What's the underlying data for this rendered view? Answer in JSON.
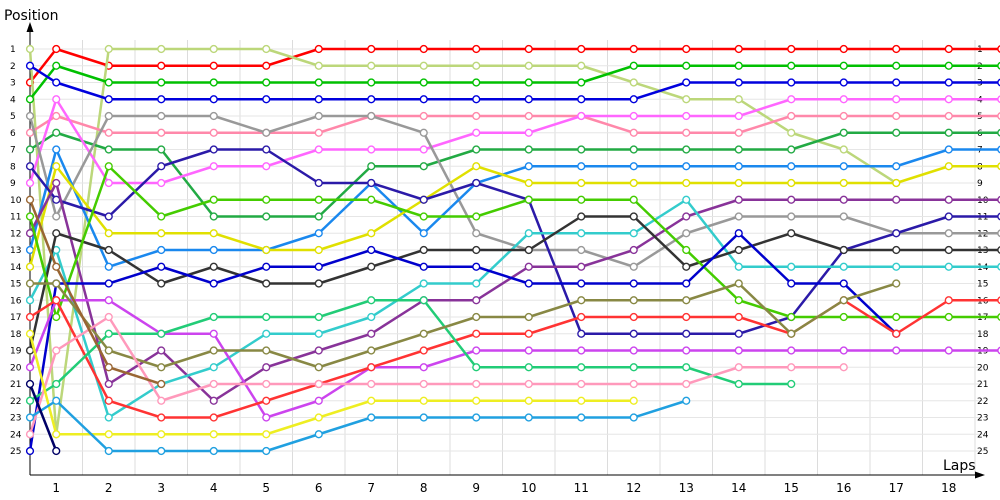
{
  "chart_data": {
    "type": "line",
    "ylabel": "Position",
    "xlabel": "Laps",
    "x_ticks": [
      "1",
      "2",
      "3",
      "4",
      "5",
      "6",
      "7",
      "8",
      "9",
      "10",
      "11",
      "12",
      "13",
      "14",
      "15",
      "16",
      "17",
      "18"
    ],
    "y_ticks": [
      "1",
      "2",
      "3",
      "4",
      "5",
      "6",
      "7",
      "8",
      "9",
      "10",
      "11",
      "12",
      "13",
      "14",
      "15",
      "16",
      "17",
      "18",
      "19",
      "20",
      "21",
      "22",
      "23",
      "24",
      "25"
    ],
    "x_points": [
      0,
      0.5,
      1.5,
      2.5,
      3.5,
      4.5,
      5.5,
      6.5,
      7.5,
      8.5,
      9.5,
      10.5,
      11.5,
      12.5,
      13.5,
      14.5,
      15.5,
      16.5,
      17.5,
      18.5
    ],
    "ylim": [
      1,
      25
    ],
    "grid": true,
    "series": [
      {
        "color": "#ff0000",
        "values": [
          3,
          1,
          2,
          2,
          2,
          2,
          1,
          1,
          1,
          1,
          1,
          1,
          1,
          1,
          1,
          1,
          1,
          1,
          1,
          1
        ]
      },
      {
        "color": "#bcd77a",
        "values": [
          1,
          24,
          1,
          1,
          1,
          1,
          2,
          2,
          2,
          2,
          2,
          2,
          3,
          4,
          4,
          6,
          7,
          9,
          null,
          null
        ]
      },
      {
        "color": "#00c000",
        "values": [
          4,
          2,
          3,
          3,
          3,
          3,
          3,
          3,
          3,
          3,
          3,
          3,
          2,
          2,
          2,
          2,
          2,
          2,
          2,
          2
        ]
      },
      {
        "color": "#0000dd",
        "values": [
          2,
          3,
          4,
          4,
          4,
          4,
          4,
          4,
          4,
          4,
          4,
          4,
          4,
          3,
          3,
          3,
          3,
          3,
          3,
          3
        ]
      },
      {
        "color": "#ff88aa",
        "values": [
          6,
          5,
          6,
          6,
          6,
          6,
          6,
          5,
          5,
          5,
          5,
          5,
          6,
          6,
          6,
          5,
          5,
          5,
          5,
          5
        ]
      },
      {
        "color": "#22aa44",
        "values": [
          7,
          6,
          7,
          7,
          11,
          11,
          11,
          8,
          8,
          7,
          7,
          7,
          7,
          7,
          7,
          7,
          6,
          6,
          6,
          6
        ]
      },
      {
        "color": "#ff66ff",
        "values": [
          9,
          4,
          9,
          9,
          8,
          8,
          7,
          7,
          7,
          6,
          6,
          5,
          5,
          5,
          5,
          4,
          4,
          4,
          4,
          4
        ]
      },
      {
        "color": "#999999",
        "values": [
          5,
          11,
          5,
          5,
          5,
          6,
          5,
          5,
          6,
          12,
          13,
          13,
          14,
          12,
          11,
          11,
          11,
          12,
          12,
          12
        ]
      },
      {
        "color": "#1a88ee",
        "values": [
          13,
          7,
          14,
          13,
          13,
          13,
          12,
          9,
          12,
          9,
          8,
          8,
          8,
          8,
          8,
          8,
          8,
          8,
          7,
          7
        ]
      },
      {
        "color": "#e0e000",
        "values": [
          14,
          8,
          12,
          12,
          12,
          13,
          13,
          12,
          10,
          8,
          9,
          9,
          9,
          9,
          9,
          9,
          9,
          9,
          8,
          8
        ]
      },
      {
        "color": "#2b1aa8",
        "values": [
          8,
          10,
          11,
          8,
          7,
          7,
          9,
          9,
          10,
          9,
          10,
          18,
          18,
          18,
          18,
          17,
          13,
          12,
          11,
          11
        ]
      },
      {
        "color": "#883399",
        "values": [
          12,
          9,
          21,
          19,
          22,
          20,
          19,
          18,
          16,
          16,
          14,
          14,
          13,
          11,
          10,
          10,
          10,
          10,
          10,
          10
        ]
      },
      {
        "color": "#33cccc",
        "values": [
          16,
          13,
          23,
          21,
          20,
          18,
          18,
          17,
          15,
          15,
          12,
          12,
          12,
          10,
          14,
          14,
          14,
          14,
          14,
          14
        ]
      },
      {
        "color": "#333333",
        "values": [
          19,
          12,
          13,
          15,
          14,
          15,
          15,
          14,
          13,
          13,
          13,
          11,
          11,
          14,
          13,
          12,
          13,
          13,
          13,
          13
        ]
      },
      {
        "color": "#44cc00",
        "values": [
          11,
          17,
          8,
          11,
          10,
          10,
          10,
          10,
          11,
          11,
          10,
          10,
          10,
          13,
          16,
          17,
          17,
          17,
          17,
          17
        ]
      },
      {
        "color": "#0000cc",
        "values": [
          25,
          15,
          15,
          14,
          15,
          14,
          14,
          13,
          14,
          14,
          15,
          15,
          15,
          15,
          12,
          15,
          15,
          18,
          null,
          null
        ]
      },
      {
        "color": "#cc44ee",
        "values": [
          20,
          16,
          16,
          18,
          18,
          23,
          22,
          20,
          20,
          19,
          19,
          19,
          19,
          19,
          19,
          19,
          19,
          19,
          19,
          19
        ]
      },
      {
        "color": "#ff3333",
        "values": [
          17,
          16,
          22,
          23,
          23,
          22,
          21,
          20,
          19,
          18,
          18,
          17,
          17,
          17,
          17,
          18,
          16,
          18,
          16,
          16
        ]
      },
      {
        "color": "#22cc77",
        "values": [
          22,
          21,
          18,
          18,
          17,
          17,
          17,
          16,
          16,
          20,
          20,
          20,
          20,
          20,
          21,
          21,
          null,
          null,
          null,
          null
        ]
      },
      {
        "color": "#888844",
        "values": [
          15,
          15,
          19,
          20,
          19,
          19,
          20,
          19,
          18,
          17,
          17,
          16,
          16,
          16,
          15,
          18,
          16,
          15,
          null,
          null
        ]
      },
      {
        "color": "#ff99bb",
        "values": [
          24,
          19,
          17,
          22,
          21,
          21,
          21,
          21,
          21,
          21,
          21,
          21,
          21,
          21,
          20,
          20,
          20,
          null,
          null,
          null
        ]
      },
      {
        "color": "#eeee22",
        "values": [
          18,
          24,
          24,
          24,
          24,
          24,
          23,
          22,
          22,
          22,
          22,
          22,
          22,
          null,
          null,
          null,
          null,
          null,
          null,
          null
        ]
      },
      {
        "color": "#20a0e0",
        "values": [
          23,
          22,
          25,
          25,
          25,
          25,
          24,
          23,
          23,
          23,
          23,
          23,
          23,
          22,
          null,
          null,
          null,
          null,
          null,
          null
        ]
      },
      {
        "color": "#996633",
        "values": [
          10,
          14,
          20,
          21,
          null,
          null,
          null,
          null,
          null,
          null,
          null,
          null,
          null,
          null,
          null,
          null,
          null,
          null,
          null,
          null
        ]
      },
      {
        "color": "#000066",
        "values": [
          21,
          25,
          null,
          null,
          null,
          null,
          null,
          null,
          null,
          null,
          null,
          null,
          null,
          null,
          null,
          null,
          null,
          null,
          null,
          null
        ]
      }
    ]
  }
}
